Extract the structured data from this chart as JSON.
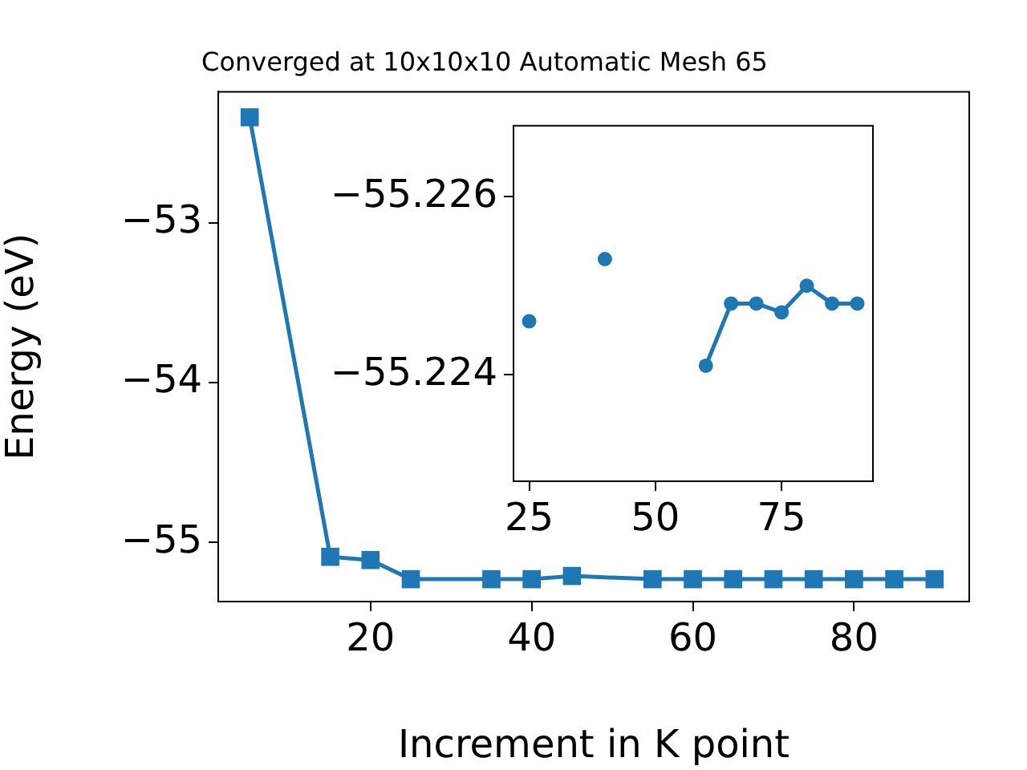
{
  "chart_data": [
    {
      "type": "line",
      "title": "Converged at 10x10x10 Automatic Mesh 65",
      "xlabel": "Increment in K point",
      "ylabel": "Energy (eV)",
      "marker": "square",
      "x": [
        5,
        15,
        20,
        25,
        35,
        40,
        45,
        55,
        60,
        65,
        70,
        75,
        80,
        85,
        90
      ],
      "series": [
        {
          "color": "#1f77b4",
          "values": [
            -52.34,
            -55.09,
            -55.11,
            -55.23,
            -55.23,
            -55.23,
            -55.21,
            -55.23,
            -55.23,
            -55.23,
            -55.23,
            -55.23,
            -55.23,
            -55.23,
            -55.23
          ]
        }
      ],
      "xlim": [
        1.1,
        94.3
      ],
      "ylim": [
        -55.37,
        -52.18
      ],
      "xticks": [
        20,
        40,
        60,
        80
      ],
      "yticks": [
        -55,
        -54,
        -53
      ],
      "grid": false,
      "legend": false
    },
    {
      "type": "line",
      "marker": "circle",
      "x": [
        25,
        35,
        40,
        45,
        55,
        60,
        65,
        70,
        75,
        80,
        85,
        90
      ],
      "series": [
        {
          "color": "#1f77b4",
          "values": [
            -55.2246,
            null,
            -55.2253,
            null,
            null,
            -55.2241,
            -55.2248,
            -55.2248,
            -55.2247,
            -55.225,
            -55.2248,
            -55.2248
          ]
        }
      ],
      "xlim": [
        21.9,
        93.1
      ],
      "ylim": [
        -55.2228,
        -55.2268
      ],
      "xticks": [
        25,
        50,
        75
      ],
      "yticks": [
        -55.226,
        -55.224
      ],
      "grid": false,
      "legend": false
    }
  ]
}
